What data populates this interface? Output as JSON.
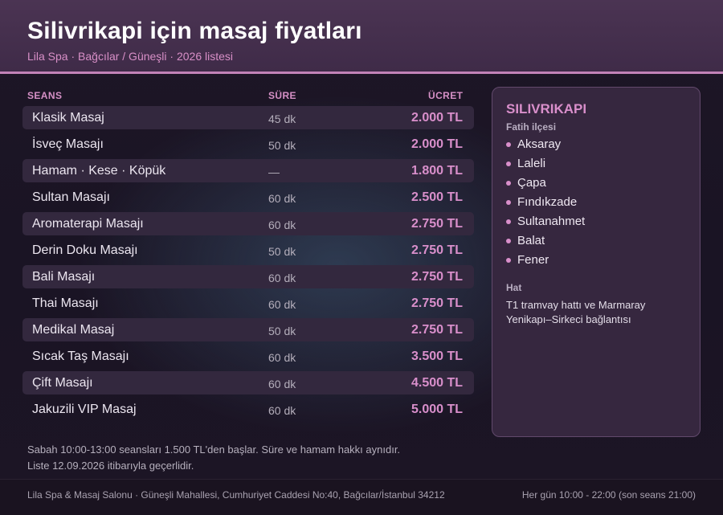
{
  "header": {
    "title": "Silivrikapi için masaj fiyatları",
    "subtitle": "Lila Spa · Bağcılar / Güneşli · 2026 listesi"
  },
  "table": {
    "headers": {
      "service": "SEANS",
      "duration": "SÜRE",
      "price": "ÜCRET"
    },
    "rows": [
      {
        "name": "Klasik Masaj",
        "duration": "45 dk",
        "price": "2.000 TL"
      },
      {
        "name": "İsveç Masajı",
        "duration": "50 dk",
        "price": "2.000 TL"
      },
      {
        "name": "Hamam · Kese · Köpük",
        "duration": "—",
        "price": "1.800 TL"
      },
      {
        "name": "Sultan Masajı",
        "duration": "60 dk",
        "price": "2.500 TL"
      },
      {
        "name": "Aromaterapi Masajı",
        "duration": "60 dk",
        "price": "2.750 TL"
      },
      {
        "name": "Derin Doku Masajı",
        "duration": "50 dk",
        "price": "2.750 TL"
      },
      {
        "name": "Bali Masajı",
        "duration": "60 dk",
        "price": "2.750 TL"
      },
      {
        "name": "Thai Masajı",
        "duration": "60 dk",
        "price": "2.750 TL"
      },
      {
        "name": "Medikal Masaj",
        "duration": "50 dk",
        "price": "2.750 TL"
      },
      {
        "name": "Sıcak Taş Masajı",
        "duration": "60 dk",
        "price": "3.500 TL"
      },
      {
        "name": "Çift Masajı",
        "duration": "60 dk",
        "price": "4.500 TL"
      },
      {
        "name": "Jakuzili VIP Masaj",
        "duration": "60 dk",
        "price": "5.000 TL"
      }
    ]
  },
  "panel": {
    "title": "SILIVRIKAPI",
    "district": "Fatih ilçesi",
    "nearby": [
      "Aksaray",
      "Laleli",
      "Çapa",
      "Fındıkzade",
      "Sultanahmet",
      "Balat",
      "Fener"
    ],
    "transit_heading": "Hat",
    "transit_text": "T1 tramvay hattı ve Marmaray Yenikapı–Sirkeci bağlantısı"
  },
  "notes": {
    "line1": "Sabah 10:00-13:00 seansları 1.500 TL'den başlar. Süre ve hamam hakkı aynıdır.",
    "line2": "Liste 12.09.2026 itibarıyla geçerlidir."
  },
  "footer": {
    "address": "Lila Spa & Masaj Salonu · Güneşli Mahallesi, Cumhuriyet Caddesi No:40, Bağcılar/İstanbul 34212",
    "hours": "Her gün 10:00 - 22:00 (son seans 21:00)"
  },
  "colors": {
    "accent": "#d98fcb",
    "header_bg": "#4b3453",
    "panel_bg": "#36273f"
  }
}
